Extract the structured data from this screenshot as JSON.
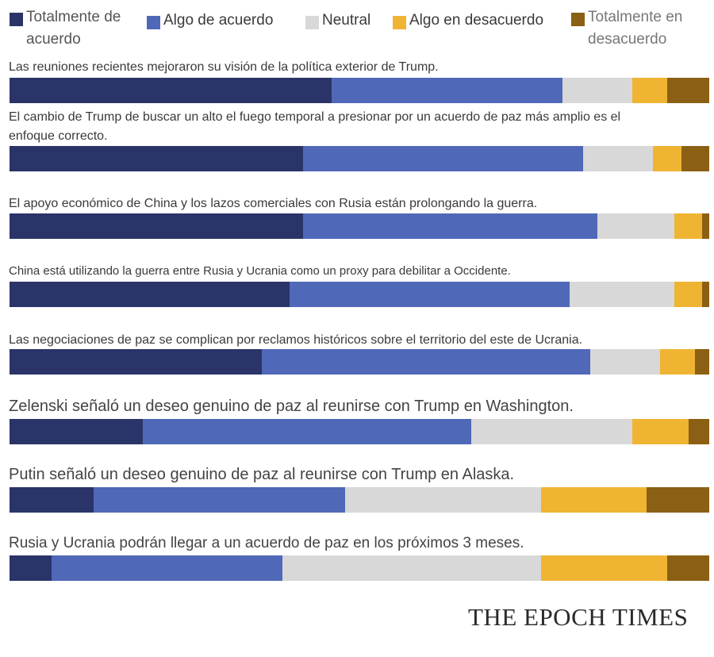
{
  "chart_data": {
    "type": "bar",
    "orientation": "horizontal",
    "stacked": true,
    "normalized": true,
    "categories": [
      "Las reuniones recientes mejoraron su visión de la política exterior de Trump.",
      "El cambio de Trump de buscar un alto el fuego temporal a presionar por un acuerdo de paz más amplio es el enfoque correcto.",
      "El apoyo económico de China y los lazos comerciales con Rusia están prolongando la guerra.",
      "China está utilizando la guerra entre Rusia y Ucrania como un proxy para debilitar a Occidente.",
      "Las negociaciones de paz se complican por reclamos históricos sobre el territorio del este de Ucrania.",
      "Zelenski señaló un deseo genuino de paz al reunirse con Trump en Washington.",
      "Putin señaló un deseo genuino de paz al reunirse con Trump en Alaska.",
      "Rusia y Ucrania podrán llegar a un acuerdo de paz en los próximos 3 meses."
    ],
    "series": [
      {
        "name": "Totalmente de acuerdo",
        "color": "#2a3468",
        "values": [
          46,
          42,
          42,
          40,
          36,
          19,
          12,
          6
        ]
      },
      {
        "name": "Algo de acuerdo",
        "color": "#5068b8",
        "values": [
          33,
          40,
          42,
          40,
          47,
          47,
          36,
          33
        ]
      },
      {
        "name": "Neutral",
        "color": "#d8d8d8",
        "values": [
          10,
          10,
          11,
          15,
          10,
          23,
          28,
          37
        ]
      },
      {
        "name": "Algo en desacuerdo",
        "color": "#f0b433",
        "values": [
          5,
          4,
          4,
          4,
          5,
          8,
          15,
          18
        ]
      },
      {
        "name": "Totalmente en desacuerdo",
        "color": "#8b6014",
        "values": [
          6,
          4,
          1,
          1,
          2,
          3,
          9,
          6
        ]
      }
    ],
    "xlim": [
      0,
      100
    ],
    "legend_position": "top",
    "grid": false
  },
  "source": "THE EPOCH TIMES"
}
